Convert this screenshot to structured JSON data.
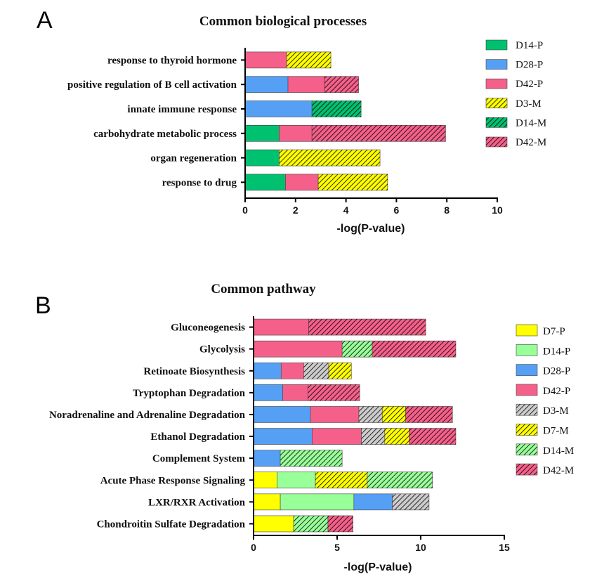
{
  "colors": {
    "yellow": "#ffff00",
    "lightgreen": "#99ff99",
    "green": "#00c170",
    "blue": "#55a0f5",
    "pink": "#f5608a",
    "gray": "#cccccc"
  },
  "chart_data": [
    {
      "panel_label": "A",
      "type": "bar",
      "orientation": "horizontal",
      "stacked": true,
      "title": "Common biological processes",
      "xlabel": "-log(P-value)",
      "ylabel": "",
      "xlim": [
        0,
        10
      ],
      "xticks": [
        "0",
        "2",
        "4",
        "6",
        "8",
        "10"
      ],
      "legend_position": "right",
      "categories": [
        "response to thyroid hormone",
        "positive regulation of B cell activation",
        "innate immune response",
        "carbohydrate metabolic process",
        "organ regeneration",
        "response to drug"
      ],
      "series": [
        {
          "name": "D14-P",
          "color": "#00c170",
          "hatched": false,
          "values": [
            0,
            0,
            0,
            1.35,
            1.35,
            1.6
          ]
        },
        {
          "name": "D28-P",
          "color": "#55a0f5",
          "hatched": false,
          "values": [
            0,
            1.7,
            2.65,
            0,
            0,
            0
          ]
        },
        {
          "name": "D42-P",
          "color": "#f5608a",
          "hatched": false,
          "values": [
            1.65,
            1.45,
            0,
            1.3,
            0,
            1.3
          ]
        },
        {
          "name": "D3-M",
          "color": "#ffff00",
          "hatched": true,
          "values": [
            1.75,
            0,
            0,
            0,
            4.0,
            2.75
          ]
        },
        {
          "name": "D14-M",
          "color": "#00c170",
          "hatched": true,
          "values": [
            0,
            0,
            1.95,
            0,
            0,
            0
          ]
        },
        {
          "name": "D42-M",
          "color": "#f5608a",
          "hatched": true,
          "values": [
            0,
            1.35,
            0,
            5.3,
            0,
            0
          ]
        }
      ]
    },
    {
      "panel_label": "B",
      "type": "bar",
      "orientation": "horizontal",
      "stacked": true,
      "title": "Common pathway",
      "xlabel": "-log(P-value)",
      "ylabel": "",
      "xlim": [
        0,
        15
      ],
      "xticks": [
        "0",
        "5",
        "10",
        "15"
      ],
      "legend_position": "right",
      "categories": [
        "Gluconeogenesis",
        "Glycolysis",
        "Retinoate Biosynthesis",
        "Tryptophan Degradation",
        "Noradrenaline and Adrenaline Degradation",
        "Ethanol Degradation",
        "Complement System",
        "Acute Phase Response Signaling",
        "LXR/RXR Activation",
        "Chondroitin Sulfate Degradation"
      ],
      "series": [
        {
          "name": "D7-P",
          "color": "#ffff00",
          "hatched": false,
          "values": [
            0,
            0,
            0,
            0,
            0,
            0,
            0,
            1.4,
            1.6,
            2.4
          ]
        },
        {
          "name": "D14-P",
          "color": "#99ff99",
          "hatched": false,
          "values": [
            0,
            0,
            0,
            0,
            0,
            0,
            0,
            2.3,
            4.4,
            0
          ]
        },
        {
          "name": "D28-P",
          "color": "#55a0f5",
          "hatched": false,
          "values": [
            0,
            0,
            1.65,
            1.75,
            3.4,
            3.5,
            1.6,
            0,
            2.3,
            0
          ]
        },
        {
          "name": "D42-P",
          "color": "#f5608a",
          "hatched": false,
          "values": [
            3.3,
            5.3,
            1.35,
            1.5,
            2.9,
            2.95,
            0,
            0,
            0,
            0
          ]
        },
        {
          "name": "D3-M",
          "color": "#cccccc",
          "hatched": true,
          "values": [
            0,
            0,
            1.5,
            0,
            1.4,
            1.4,
            0,
            0,
            2.2,
            0
          ]
        },
        {
          "name": "D7-M",
          "color": "#ffff00",
          "hatched": true,
          "values": [
            0,
            0,
            1.35,
            0,
            1.4,
            1.45,
            0,
            3.1,
            0,
            0
          ]
        },
        {
          "name": "D14-M",
          "color": "#99ff99",
          "hatched": true,
          "values": [
            0,
            1.8,
            0,
            0,
            0,
            0,
            3.7,
            3.9,
            0,
            2.05
          ]
        },
        {
          "name": "D42-M",
          "color": "#f5608a",
          "hatched": true,
          "values": [
            7.0,
            5.0,
            0,
            3.1,
            2.8,
            2.8,
            0,
            0,
            0,
            1.5
          ]
        }
      ]
    }
  ]
}
